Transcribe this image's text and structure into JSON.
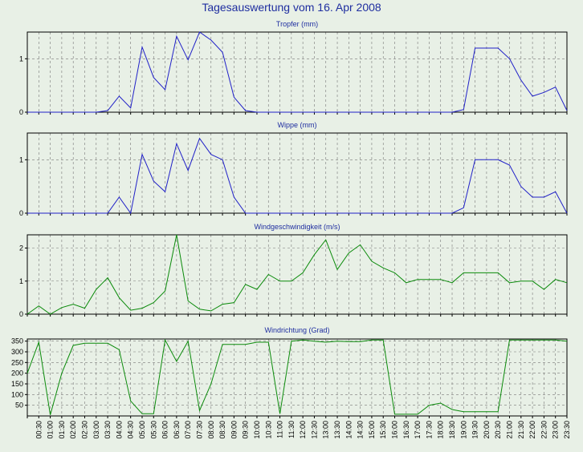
{
  "page": {
    "title": "Tagesauswertung vom 16. Apr 2008"
  },
  "colors": {
    "background": "#e8f0e6",
    "title": "#1f2ea0",
    "blue_series": "#2020c8",
    "green_series": "#0a8a0a",
    "grid": "#777777"
  },
  "time_labels": [
    "00:30",
    "01:00",
    "01:30",
    "02:00",
    "02:30",
    "03:00",
    "03:30",
    "04:00",
    "04:30",
    "05:00",
    "05:30",
    "06:00",
    "06:30",
    "07:00",
    "07:30",
    "08:00",
    "08:30",
    "09:00",
    "09:30",
    "10:00",
    "10:30",
    "11:00",
    "11:30",
    "12:00",
    "12:30",
    "13:00",
    "13:30",
    "14:00",
    "14:30",
    "15:00",
    "15:30",
    "16:00",
    "16:30",
    "17:00",
    "17:30",
    "18:00",
    "18:30",
    "19:00",
    "19:30",
    "20:00",
    "20:30",
    "21:00",
    "21:30",
    "22:00",
    "22:30",
    "23:00",
    "23:30"
  ],
  "chart_data": [
    {
      "type": "line",
      "title": "Tropfer (mm)",
      "yticks": [
        "0",
        "1"
      ],
      "ylim": [
        0,
        1.5
      ],
      "grid": true,
      "color": "#2020c8",
      "values": [
        0,
        0,
        0,
        0,
        0,
        0,
        0,
        0.03,
        0.3,
        0.08,
        1.22,
        0.65,
        0.42,
        1.42,
        0.98,
        1.5,
        1.35,
        1.12,
        0.28,
        0.03,
        0,
        0,
        0,
        0,
        0,
        0,
        0,
        0,
        0,
        0,
        0,
        0,
        0,
        0,
        0,
        0,
        0,
        0,
        0.05,
        1.2,
        1.2,
        1.2,
        1.0,
        0.6,
        0.3,
        0.37,
        0.47,
        0.03
      ]
    },
    {
      "type": "line",
      "title": "Wippe (mm)",
      "yticks": [
        "0",
        "1"
      ],
      "ylim": [
        0,
        1.5
      ],
      "grid": true,
      "color": "#2020c8",
      "values": [
        0,
        0,
        0,
        0,
        0,
        0,
        0,
        0,
        0.3,
        0,
        1.1,
        0.6,
        0.4,
        1.3,
        0.8,
        1.4,
        1.1,
        1.0,
        0.3,
        0,
        0,
        0,
        0,
        0,
        0,
        0,
        0,
        0,
        0,
        0,
        0,
        0,
        0,
        0,
        0,
        0,
        0,
        0,
        0.1,
        1.0,
        1.0,
        1.0,
        0.9,
        0.5,
        0.3,
        0.3,
        0.4,
        0
      ]
    },
    {
      "type": "line",
      "title": "Windgeschwindigkeit (m/s)",
      "yticks": [
        "0",
        "1",
        "2"
      ],
      "ylim": [
        0,
        2.4
      ],
      "grid": true,
      "color": "#0a8a0a",
      "values": [
        0,
        0.25,
        0,
        0.2,
        0.3,
        0.18,
        0.75,
        1.1,
        0.5,
        0.12,
        0.18,
        0.35,
        0.7,
        2.4,
        0.4,
        0.15,
        0.1,
        0.3,
        0.35,
        0.9,
        0.75,
        1.2,
        1.0,
        1.0,
        1.25,
        1.8,
        2.25,
        1.35,
        1.85,
        2.1,
        1.6,
        1.4,
        1.25,
        0.95,
        1.05,
        1.05,
        1.05,
        0.95,
        1.25,
        1.25,
        1.25,
        1.25,
        0.95,
        1.0,
        1.0,
        0.75,
        1.05,
        0.95
      ]
    },
    {
      "type": "line",
      "title": "Windrichtung (Grad)",
      "yticks": [
        "50",
        "100",
        "150",
        "200",
        "250",
        "300",
        "350"
      ],
      "ylim": [
        0,
        360
      ],
      "grid": true,
      "color": "#0a8a0a",
      "values": [
        200,
        345,
        5,
        200,
        330,
        340,
        340,
        340,
        310,
        70,
        10,
        10,
        355,
        255,
        350,
        25,
        150,
        335,
        335,
        335,
        345,
        345,
        10,
        350,
        355,
        350,
        345,
        350,
        348,
        348,
        355,
        355,
        8,
        8,
        8,
        50,
        60,
        30,
        20,
        20,
        20,
        20,
        355,
        355,
        355,
        355,
        355,
        350
      ]
    }
  ]
}
